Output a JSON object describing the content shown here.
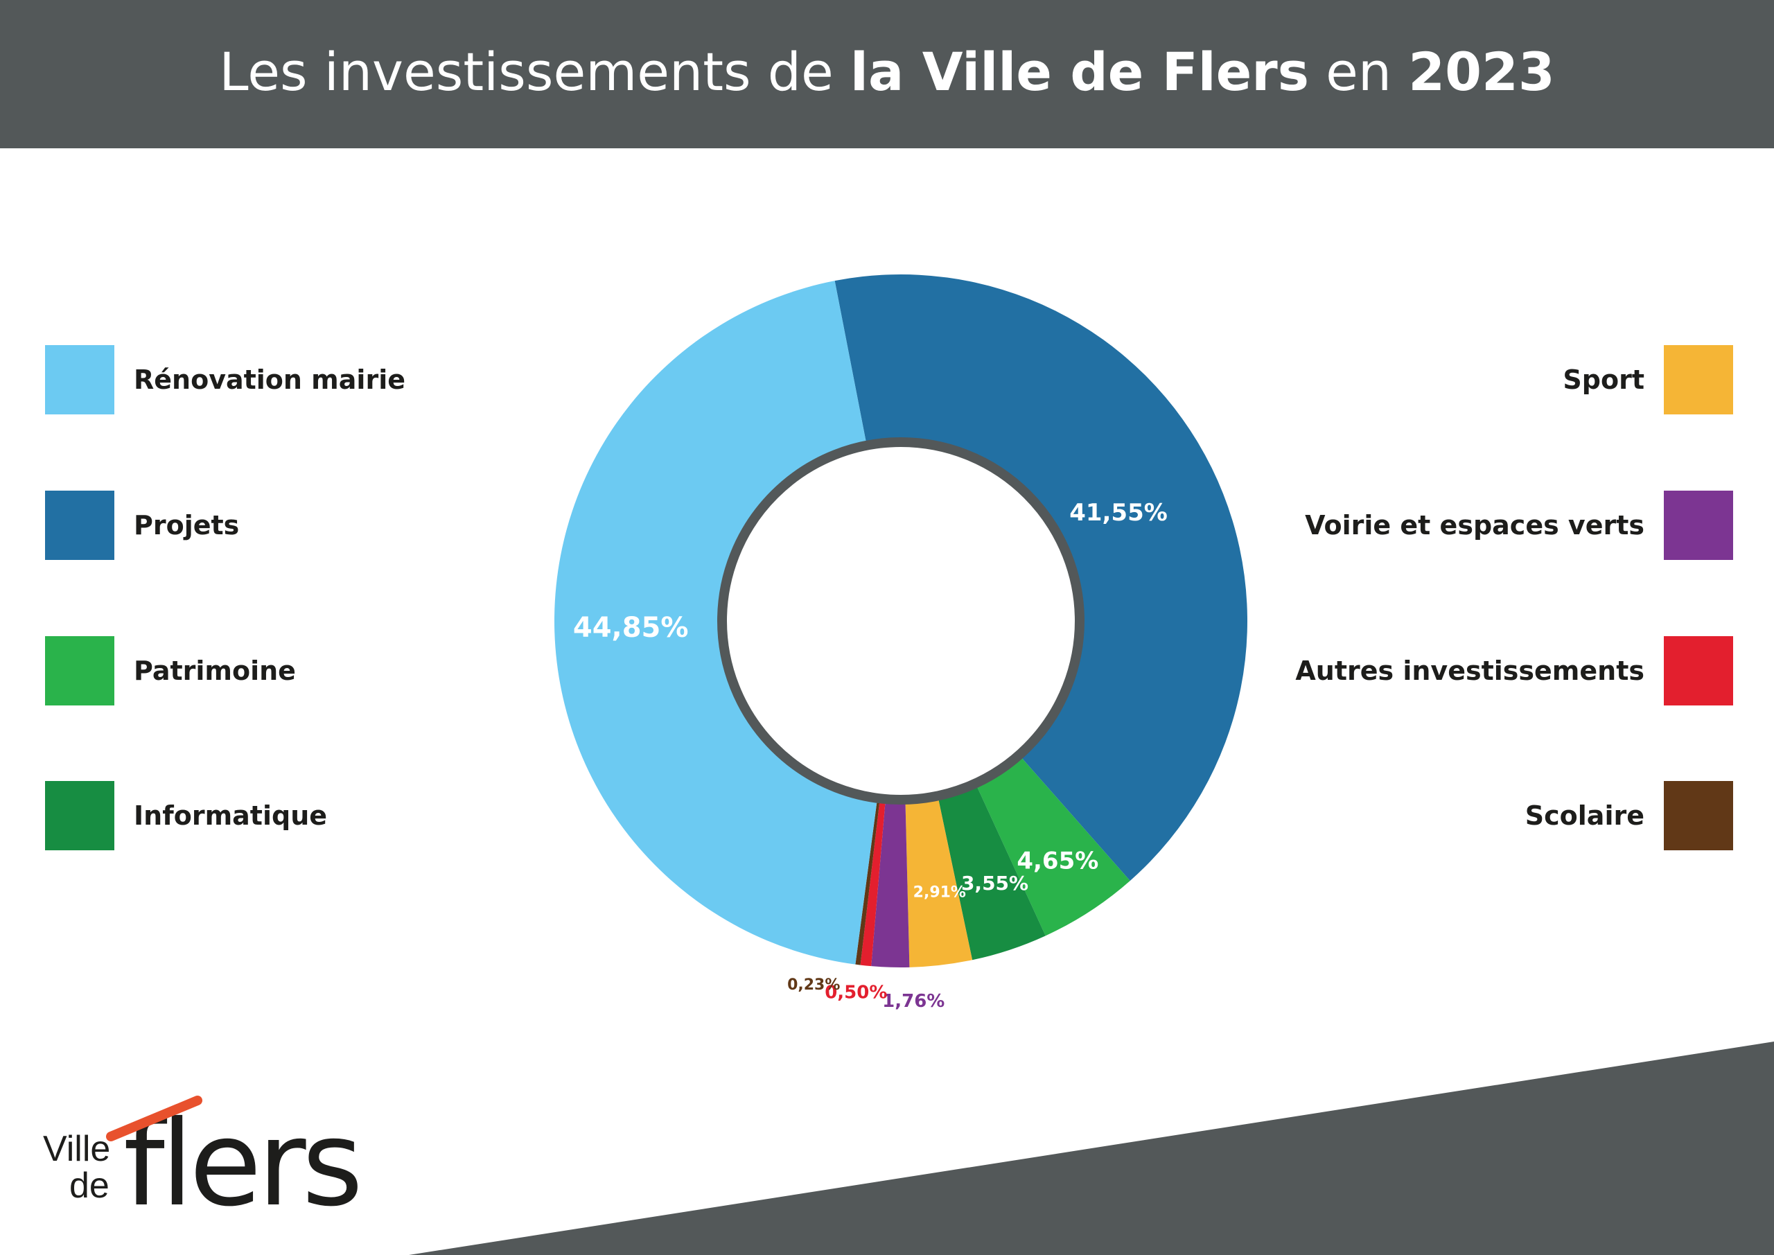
{
  "header": {
    "title_parts": [
      {
        "text": "Les investissements de ",
        "bold": false
      },
      {
        "text": "la Ville de Flers",
        "bold": true
      },
      {
        "text": " en ",
        "bold": false
      },
      {
        "text": "2023",
        "bold": true
      }
    ]
  },
  "colors": {
    "header_bg": "#535859",
    "ring": "#535859"
  },
  "chart_data": {
    "type": "pie",
    "style": "donut",
    "title": "Les investissements de la Ville de Flers en 2023",
    "start_category": "Projets",
    "direction": "clockwise",
    "slices": [
      {
        "name": "Projets",
        "value": 41.55,
        "label": "41,55%",
        "color": "#2270a3",
        "label_color": "#ffffff"
      },
      {
        "name": "Patrimoine",
        "value": 4.65,
        "label": "4,65%",
        "color": "#2ab34b",
        "label_color": "#ffffff"
      },
      {
        "name": "Informatique",
        "value": 3.55,
        "label": "3,55%",
        "color": "#178d42",
        "label_color": "#ffffff"
      },
      {
        "name": "Sport",
        "value": 2.91,
        "label": "2,91%",
        "color": "#f5b536",
        "label_color": "#ffffff"
      },
      {
        "name": "Voirie et espaces verts",
        "value": 1.76,
        "label": "1,76%",
        "color": "#7c3592",
        "label_color": "#7c3592"
      },
      {
        "name": "Autres investissements",
        "value": 0.5,
        "label": "0,50%",
        "color": "#e31f2e",
        "label_color": "#e31f2e"
      },
      {
        "name": "Scolaire",
        "value": 0.23,
        "label": "0,23%",
        "color": "#613817",
        "label_color": "#613817"
      },
      {
        "name": "Rénovation mairie",
        "value": 44.85,
        "label": "44,85%",
        "color": "#6ccaf2",
        "label_color": "#ffffff"
      }
    ]
  },
  "legend": {
    "left": [
      {
        "label": "Rénovation mairie",
        "color": "#6ccaf2"
      },
      {
        "label": "Projets",
        "color": "#2270a3"
      },
      {
        "label": "Patrimoine",
        "color": "#2ab34b"
      },
      {
        "label": "Informatique",
        "color": "#178d42"
      }
    ],
    "right": [
      {
        "label": "Sport",
        "color": "#f5b536"
      },
      {
        "label": "Voirie et espaces verts",
        "color": "#7c3592"
      },
      {
        "label": "Autres investissements",
        "color": "#e31f2e"
      },
      {
        "label": "Scolaire",
        "color": "#613817"
      }
    ]
  },
  "logo": {
    "line1": "Ville",
    "line2": "de",
    "wordmark": "flers",
    "accent_color": "#e8512d"
  }
}
